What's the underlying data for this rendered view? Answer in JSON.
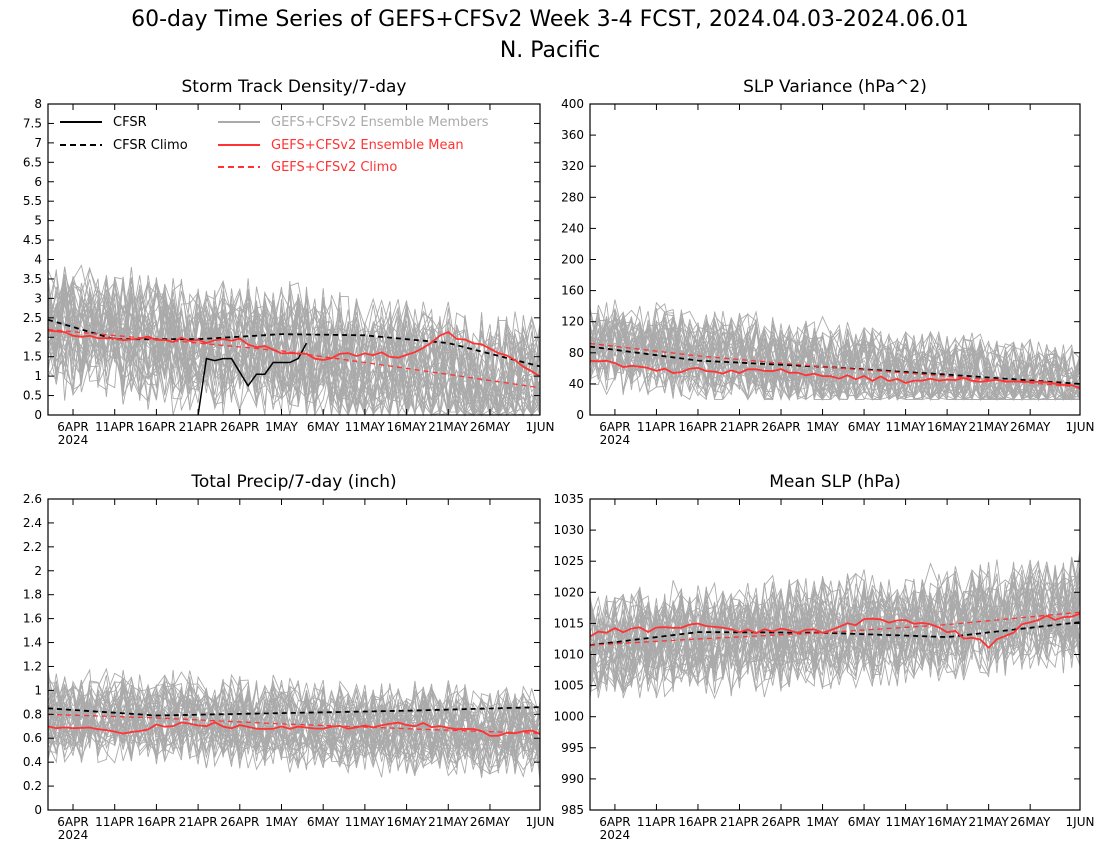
{
  "figure": {
    "title": "60-day Time Series of GEFS+CFSv2 Week 3-4 FCST, 2024.04.03-2024.06.01",
    "subtitle": "N. Pacific"
  },
  "legend": {
    "entries": [
      {
        "key": "cfsr",
        "label": "CFSR",
        "color": "#000000",
        "dash": false
      },
      {
        "key": "cfsr_climo",
        "label": "CFSR Climo",
        "color": "#000000",
        "dash": true
      },
      {
        "key": "members",
        "label": "GEFS+CFSv2 Ensemble Members",
        "color": "#aaaaaa",
        "dash": false
      },
      {
        "key": "mean",
        "label": "GEFS+CFSv2 Ensemble Mean",
        "color": "#ff3333",
        "dash": false
      },
      {
        "key": "climo",
        "label": "GEFS+CFSv2 Climo",
        "color": "#ff3333",
        "dash": true
      }
    ]
  },
  "colors": {
    "members": "#aaaaaa",
    "mean": "#ff3333",
    "cfsr": "#000000"
  },
  "chart_data": [
    {
      "type": "line",
      "title": "Storm Track Density/7-day",
      "xlim": [
        "2024-04-03",
        "2024-06-01"
      ],
      "ylim": [
        0,
        8
      ],
      "yticks": [
        0,
        0.5,
        1,
        1.5,
        2,
        2.5,
        3,
        3.5,
        4,
        4.5,
        5,
        5.5,
        6,
        6.5,
        7,
        7.5,
        8
      ],
      "xticks": [
        "6APR",
        "11APR",
        "16APR",
        "21APR",
        "26APR",
        "1MAY",
        "6MAY",
        "11MAY",
        "16MAY",
        "21MAY",
        "26MAY",
        "1JUN"
      ],
      "xtick_dates": [
        "2024-04-06",
        "2024-04-11",
        "2024-04-16",
        "2024-04-21",
        "2024-04-26",
        "2024-05-01",
        "2024-05-06",
        "2024-05-11",
        "2024-05-16",
        "2024-05-21",
        "2024-05-26",
        "2024-06-01"
      ],
      "year_label": "2024",
      "members": {
        "count": 40,
        "center_approx": 1.8,
        "range_approx": [
          0,
          4.6
        ]
      },
      "series": [
        {
          "name": "CFSR",
          "x": [
            "2024-04-21",
            "2024-04-22",
            "2024-04-23",
            "2024-04-24",
            "2024-04-25",
            "2024-04-26",
            "2024-04-27",
            "2024-04-28",
            "2024-04-29",
            "2024-04-30",
            "2024-05-01",
            "2024-05-02",
            "2024-05-03",
            "2024-05-04"
          ],
          "values": [
            0,
            1.45,
            1.4,
            1.45,
            1.45,
            1.1,
            0.75,
            1.05,
            1.05,
            1.35,
            1.35,
            1.35,
            1.45,
            1.85
          ]
        },
        {
          "name": "CFSR Climo",
          "x": [
            "2024-04-03",
            "2024-04-11",
            "2024-04-21",
            "2024-05-01",
            "2024-05-11",
            "2024-05-21",
            "2024-06-01"
          ],
          "values": [
            2.45,
            1.95,
            1.95,
            2.08,
            2.05,
            1.85,
            1.25
          ]
        },
        {
          "name": "GEFS+CFSv2 Ensemble Mean",
          "x": [
            "2024-04-03",
            "2024-04-06",
            "2024-04-11",
            "2024-04-16",
            "2024-04-21",
            "2024-04-26",
            "2024-05-01",
            "2024-05-06",
            "2024-05-11",
            "2024-05-16",
            "2024-05-21",
            "2024-05-26",
            "2024-06-01"
          ],
          "values": [
            2.2,
            2.05,
            2.0,
            1.95,
            1.9,
            1.95,
            1.6,
            1.45,
            1.6,
            1.5,
            2.1,
            1.7,
            1.0
          ]
        },
        {
          "name": "GEFS+CFSv2 Climo",
          "x": [
            "2024-04-03",
            "2024-04-16",
            "2024-05-01",
            "2024-05-16",
            "2024-06-01"
          ],
          "values": [
            2.2,
            1.95,
            1.65,
            1.2,
            0.7
          ]
        }
      ]
    },
    {
      "type": "line",
      "title": "SLP Variance (hPa^2)",
      "xlim": [
        "2024-04-03",
        "2024-06-01"
      ],
      "ylim": [
        0,
        400
      ],
      "yticks": [
        0,
        40,
        80,
        120,
        160,
        200,
        240,
        280,
        320,
        360,
        400
      ],
      "xticks": [
        "6APR",
        "11APR",
        "16APR",
        "21APR",
        "26APR",
        "1MAY",
        "6MAY",
        "11MAY",
        "16MAY",
        "21MAY",
        "26MAY",
        "1JUN"
      ],
      "xtick_dates": [
        "2024-04-06",
        "2024-04-11",
        "2024-04-16",
        "2024-04-21",
        "2024-04-26",
        "2024-05-01",
        "2024-05-06",
        "2024-05-11",
        "2024-05-16",
        "2024-05-21",
        "2024-05-26",
        "2024-06-01"
      ],
      "year_label": "2024",
      "members": {
        "count": 40,
        "center_approx": 55,
        "range_approx": [
          20,
          175
        ]
      },
      "series": [
        {
          "name": "CFSR Climo",
          "x": [
            "2024-04-03",
            "2024-04-16",
            "2024-05-01",
            "2024-05-16",
            "2024-06-01"
          ],
          "values": [
            88,
            70,
            62,
            52,
            40
          ]
        },
        {
          "name": "GEFS+CFSv2 Ensemble Mean",
          "x": [
            "2024-04-03",
            "2024-04-06",
            "2024-04-11",
            "2024-04-16",
            "2024-04-21",
            "2024-04-26",
            "2024-05-01",
            "2024-05-06",
            "2024-05-11",
            "2024-05-16",
            "2024-05-21",
            "2024-05-26",
            "2024-06-01"
          ],
          "values": [
            70,
            66,
            56,
            58,
            56,
            58,
            50,
            48,
            44,
            45,
            44,
            42,
            35
          ]
        },
        {
          "name": "GEFS+CFSv2 Climo",
          "x": [
            "2024-04-03",
            "2024-04-16",
            "2024-05-01",
            "2024-05-16",
            "2024-06-01"
          ],
          "values": [
            92,
            76,
            62,
            50,
            36
          ]
        }
      ]
    },
    {
      "type": "line",
      "title": "Total Precip/7-day (inch)",
      "xlim": [
        "2024-04-03",
        "2024-06-01"
      ],
      "ylim": [
        0,
        2.6
      ],
      "yticks": [
        0,
        0.2,
        0.4,
        0.6,
        0.8,
        1,
        1.2,
        1.4,
        1.6,
        1.8,
        2,
        2.2,
        2.4,
        2.6
      ],
      "xticks": [
        "6APR",
        "11APR",
        "16APR",
        "21APR",
        "26APR",
        "1MAY",
        "6MAY",
        "11MAY",
        "16MAY",
        "21MAY",
        "26MAY",
        "1JUN"
      ],
      "xtick_dates": [
        "2024-04-06",
        "2024-04-11",
        "2024-04-16",
        "2024-04-21",
        "2024-04-26",
        "2024-05-01",
        "2024-05-06",
        "2024-05-11",
        "2024-05-16",
        "2024-05-21",
        "2024-05-26",
        "2024-06-01"
      ],
      "year_label": "2024",
      "members": {
        "count": 40,
        "center_approx": 0.68,
        "range_approx": [
          0.2,
          1.2
        ]
      },
      "series": [
        {
          "name": "CFSR Climo",
          "x": [
            "2024-04-03",
            "2024-04-16",
            "2024-05-01",
            "2024-05-16",
            "2024-06-01"
          ],
          "values": [
            0.85,
            0.79,
            0.81,
            0.83,
            0.86
          ]
        },
        {
          "name": "GEFS+CFSv2 Ensemble Mean",
          "x": [
            "2024-04-03",
            "2024-04-06",
            "2024-04-11",
            "2024-04-16",
            "2024-04-21",
            "2024-04-26",
            "2024-05-01",
            "2024-05-06",
            "2024-05-11",
            "2024-05-16",
            "2024-05-21",
            "2024-05-26",
            "2024-06-01"
          ],
          "values": [
            0.68,
            0.7,
            0.65,
            0.7,
            0.72,
            0.7,
            0.68,
            0.69,
            0.7,
            0.72,
            0.7,
            0.64,
            0.65
          ]
        },
        {
          "name": "GEFS+CFSv2 Climo",
          "x": [
            "2024-04-03",
            "2024-04-16",
            "2024-05-01",
            "2024-05-16",
            "2024-06-01"
          ],
          "values": [
            0.8,
            0.77,
            0.72,
            0.68,
            0.64
          ]
        }
      ]
    },
    {
      "type": "line",
      "title": "Mean SLP (hPa)",
      "xlim": [
        "2024-04-03",
        "2024-06-01"
      ],
      "ylim": [
        985,
        1035
      ],
      "yticks": [
        985,
        990,
        995,
        1000,
        1005,
        1010,
        1015,
        1020,
        1025,
        1030,
        1035
      ],
      "xticks": [
        "6APR",
        "11APR",
        "16APR",
        "21APR",
        "26APR",
        "1MAY",
        "6MAY",
        "11MAY",
        "16MAY",
        "21MAY",
        "26MAY",
        "1JUN"
      ],
      "xtick_dates": [
        "2024-04-06",
        "2024-04-11",
        "2024-04-16",
        "2024-04-21",
        "2024-04-26",
        "2024-05-01",
        "2024-05-06",
        "2024-05-11",
        "2024-05-16",
        "2024-05-21",
        "2024-05-26",
        "2024-06-01"
      ],
      "year_label": "2024",
      "members": {
        "count": 40,
        "center_approx": 1014,
        "range_approx": [
          1003,
          1027
        ]
      },
      "series": [
        {
          "name": "CFSR Climo",
          "x": [
            "2024-04-03",
            "2024-04-16",
            "2024-05-01",
            "2024-05-16",
            "2024-06-01"
          ],
          "values": [
            1011.5,
            1013.6,
            1013.5,
            1012.8,
            1015.2
          ]
        },
        {
          "name": "GEFS+CFSv2 Ensemble Mean",
          "x": [
            "2024-04-03",
            "2024-04-06",
            "2024-04-11",
            "2024-04-16",
            "2024-04-21",
            "2024-04-26",
            "2024-05-01",
            "2024-05-06",
            "2024-05-11",
            "2024-05-16",
            "2024-05-21",
            "2024-05-26",
            "2024-06-01"
          ],
          "values": [
            1013,
            1014,
            1014,
            1015,
            1013.5,
            1014,
            1013.5,
            1015.5,
            1015.5,
            1014,
            1011.5,
            1015.5,
            1016.5
          ]
        },
        {
          "name": "GEFS+CFSv2 Climo",
          "x": [
            "2024-04-03",
            "2024-04-16",
            "2024-05-01",
            "2024-05-16",
            "2024-06-01"
          ],
          "values": [
            1011.5,
            1012.5,
            1013.5,
            1014.8,
            1016.8
          ]
        }
      ]
    }
  ]
}
